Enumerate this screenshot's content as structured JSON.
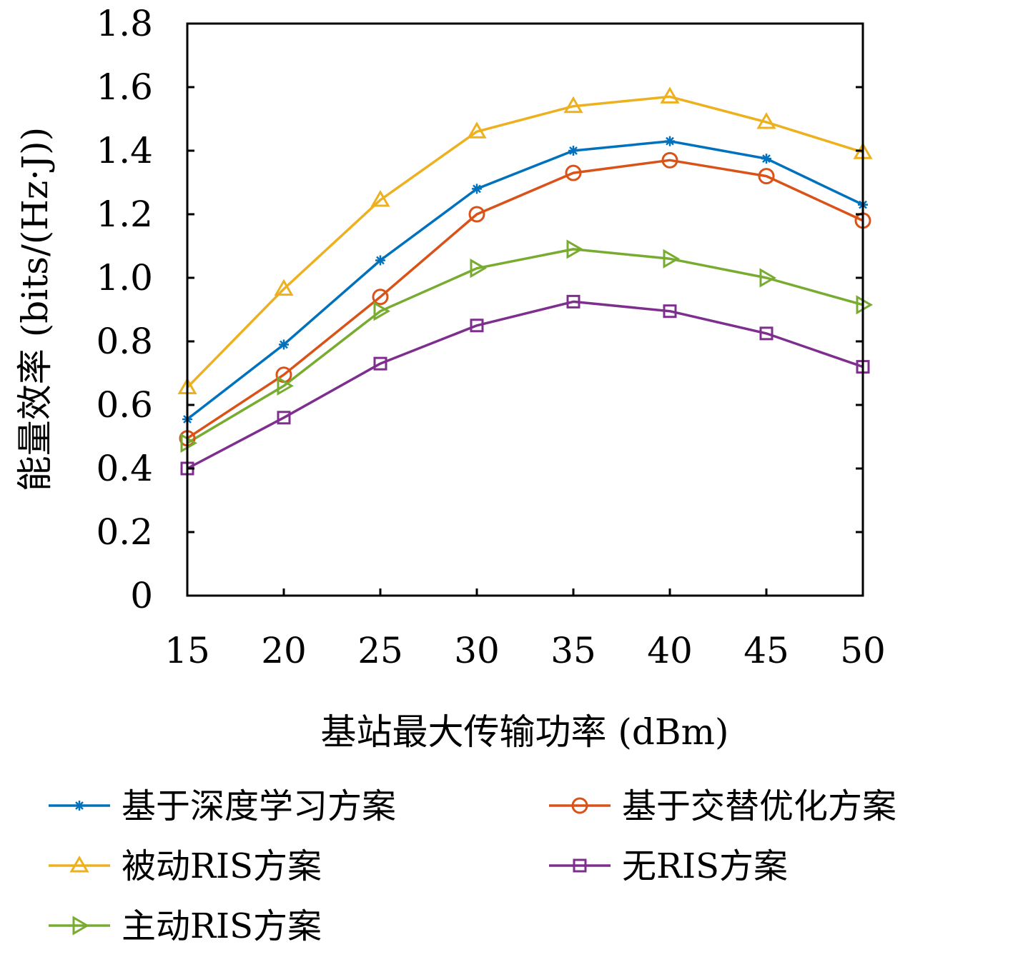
{
  "chart_data": {
    "type": "line",
    "xlabel": "基站最大传输功率 (dBm)",
    "ylabel": "能量效率 (bits/(Hz·J))",
    "x": [
      15,
      20,
      25,
      30,
      35,
      40,
      45,
      50
    ],
    "xlim": [
      15,
      50
    ],
    "ylim": [
      0,
      1.8
    ],
    "xticks": [
      "15",
      "20",
      "25",
      "30",
      "35",
      "40",
      "45",
      "50"
    ],
    "yticks": [
      "0",
      "0.2",
      "0.4",
      "0.6",
      "0.8",
      "1.0",
      "1.2",
      "1.4",
      "1.6",
      "1.8"
    ],
    "grid": false,
    "legend_position": "bottom",
    "series": [
      {
        "name": "基于深度学习方案",
        "color": "#0072BD",
        "marker": "asterisk",
        "values": [
          0.555,
          0.79,
          1.055,
          1.28,
          1.4,
          1.43,
          1.375,
          1.23
        ]
      },
      {
        "name": "基于交替优化方案",
        "color": "#D95319",
        "marker": "circle",
        "values": [
          0.495,
          0.695,
          0.94,
          1.2,
          1.33,
          1.37,
          1.32,
          1.18
        ]
      },
      {
        "name": "被动RIS方案",
        "color": "#EDB120",
        "marker": "triangle-up",
        "values": [
          0.655,
          0.965,
          1.245,
          1.46,
          1.54,
          1.57,
          1.49,
          1.395
        ]
      },
      {
        "name": "无RIS方案",
        "color": "#7E2F8E",
        "marker": "square",
        "values": [
          0.4,
          0.56,
          0.73,
          0.85,
          0.925,
          0.895,
          0.825,
          0.72
        ]
      },
      {
        "name": "主动RIS方案",
        "color": "#77AC30",
        "marker": "triangle-right",
        "values": [
          0.48,
          0.66,
          0.895,
          1.03,
          1.09,
          1.06,
          1.0,
          0.915
        ]
      }
    ]
  }
}
